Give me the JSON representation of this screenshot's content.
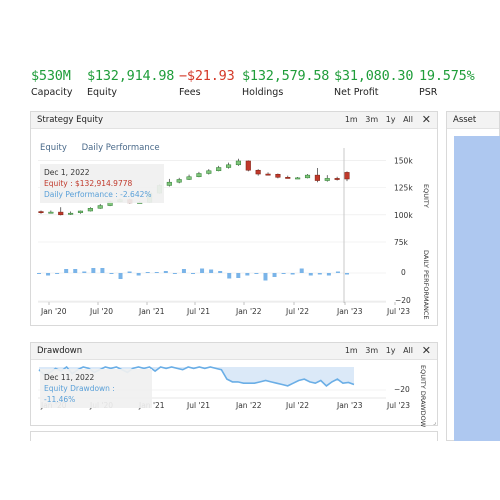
{
  "stats": [
    {
      "value": "$530M",
      "label": "Capacity",
      "color": "#1f9d3a"
    },
    {
      "value": "$132,914.98",
      "label": "Equity",
      "color": "#1f9d3a"
    },
    {
      "value": "−$21.93",
      "label": "Fees",
      "color": "#d43a2a"
    },
    {
      "value": "$132,579.58",
      "label": "Holdings",
      "color": "#1f9d3a"
    },
    {
      "value": "$31,080.30",
      "label": "Net Profit",
      "color": "#1f9d3a"
    },
    {
      "value": "19.575%",
      "label": "PSR",
      "color": "#1f9d3a"
    }
  ],
  "equity_panel": {
    "title": "Strategy Equity",
    "ranges": [
      "1m",
      "3m",
      "1y",
      "All"
    ],
    "close_icon": "close-icon",
    "tabs": [
      "Equity",
      "Daily Performance"
    ],
    "tooltip": {
      "date": "Dec 1, 2022",
      "equity": "Equity : $132,914.9778",
      "daily": "Daily Performance : -2.642%"
    },
    "y_ticks_equity": [
      "150k",
      "125k",
      "100k",
      "75k"
    ],
    "y_ticks_perf": [
      "0",
      "−20"
    ],
    "axis_label_equity": "EQUITY",
    "axis_label_perf": "DAILY PERFORMANCE",
    "x_ticks": [
      "Jan '20",
      "Jul '20",
      "Jan '21",
      "Jul '21",
      "Jan '22",
      "Jul '22",
      "Jan '23",
      "Jul '23"
    ]
  },
  "drawdown_panel": {
    "title": "Drawdown",
    "ranges": [
      "1m",
      "3m",
      "1y",
      "All"
    ],
    "close_icon": "close-icon",
    "tooltip": {
      "date": "Dec 11, 2022",
      "value": "Equity Drawdown : -11.46%"
    },
    "y_ticks": [
      "−20"
    ],
    "axis_label": "EQUITY DRAWDOWN",
    "x_ticks": [
      "Jan '20",
      "Jul '20",
      "Jan '21",
      "Jul '21",
      "Jan '22",
      "Jul '22",
      "Jan '23",
      "Jul '23"
    ]
  },
  "side_panel": {
    "title": "Asset"
  },
  "colors": {
    "up": "#1f9d3a",
    "down": "#c0392b",
    "perf": "#7ab4e8",
    "grid": "#e8e8e8"
  },
  "chart_data": [
    {
      "type": "candlestick",
      "title": "Strategy Equity",
      "x_ticks": [
        "Jan '20",
        "Jul '20",
        "Jan '21",
        "Jul '21",
        "Jan '22",
        "Jul '22",
        "Jan '23",
        "Jul '23"
      ],
      "ylabel": "EQUITY",
      "ylim": [
        75000,
        155000
      ],
      "y_ticks": [
        75000,
        100000,
        125000,
        150000
      ],
      "candles": [
        {
          "o": 103000,
          "c": 102000,
          "h": 104000,
          "l": 101000
        },
        {
          "o": 102000,
          "c": 102500,
          "h": 104000,
          "l": 101500
        },
        {
          "o": 102500,
          "c": 100000,
          "h": 107000,
          "l": 99500
        },
        {
          "o": 101000,
          "c": 101500,
          "h": 103000,
          "l": 100000
        },
        {
          "o": 102000,
          "c": 103500,
          "h": 104000,
          "l": 101000
        },
        {
          "o": 103500,
          "c": 106000,
          "h": 107000,
          "l": 103000
        },
        {
          "o": 106000,
          "c": 108500,
          "h": 110000,
          "l": 105500
        },
        {
          "o": 108500,
          "c": 112000,
          "h": 113000,
          "l": 108000
        },
        {
          "o": 112000,
          "c": 114000,
          "h": 115000,
          "l": 111500
        },
        {
          "o": 114000,
          "c": 111000,
          "h": 115000,
          "l": 110500
        },
        {
          "o": 111000,
          "c": 111500,
          "h": 112500,
          "l": 110500
        },
        {
          "o": 111500,
          "c": 120000,
          "h": 121000,
          "l": 111000
        },
        {
          "o": 120000,
          "c": 127000,
          "h": 128000,
          "l": 119500
        },
        {
          "o": 127000,
          "c": 130000,
          "h": 133000,
          "l": 126000
        },
        {
          "o": 130000,
          "c": 132500,
          "h": 134000,
          "l": 129000
        },
        {
          "o": 132500,
          "c": 135000,
          "h": 137000,
          "l": 132000
        },
        {
          "o": 135000,
          "c": 138000,
          "h": 139500,
          "l": 134500
        },
        {
          "o": 138000,
          "c": 140500,
          "h": 142000,
          "l": 137000
        },
        {
          "o": 140500,
          "c": 143500,
          "h": 145000,
          "l": 140000
        },
        {
          "o": 143500,
          "c": 146000,
          "h": 148000,
          "l": 142500
        },
        {
          "o": 146000,
          "c": 149500,
          "h": 151500,
          "l": 145000
        },
        {
          "o": 149500,
          "c": 141000,
          "h": 150000,
          "l": 140000
        },
        {
          "o": 141000,
          "c": 137500,
          "h": 142000,
          "l": 136000
        },
        {
          "o": 137500,
          "c": 137300,
          "h": 139000,
          "l": 136500
        },
        {
          "o": 137300,
          "c": 134500,
          "h": 138000,
          "l": 133500
        },
        {
          "o": 134500,
          "c": 134000,
          "h": 136000,
          "l": 133500
        },
        {
          "o": 134000,
          "c": 134000,
          "h": 134800,
          "l": 133200
        },
        {
          "o": 134000,
          "c": 136500,
          "h": 137500,
          "l": 133500
        },
        {
          "o": 136500,
          "c": 131500,
          "h": 143000,
          "l": 130000
        },
        {
          "o": 131500,
          "c": 133500,
          "h": 136500,
          "l": 130500
        },
        {
          "o": 133500,
          "c": 132500,
          "h": 135000,
          "l": 131500
        },
        {
          "o": 139000,
          "c": 132915,
          "h": 140000,
          "l": 131000
        }
      ]
    },
    {
      "type": "bar",
      "title": "Daily Performance",
      "ylabel": "DAILY PERFORMANCE",
      "ylim": [
        -25,
        20
      ],
      "y_ticks": [
        0,
        -20
      ],
      "values": [
        -1,
        -5,
        0,
        8,
        8,
        3,
        10,
        10,
        -1,
        -12,
        3,
        -5,
        2,
        2,
        4,
        0,
        8,
        0,
        9,
        7,
        4,
        -11,
        -10,
        -5,
        -1,
        -15,
        -8,
        0,
        -3,
        9,
        -5,
        -3,
        -5,
        3,
        -3
      ]
    },
    {
      "type": "area",
      "title": "Drawdown",
      "ylabel": "EQUITY DRAWDOWN",
      "ylim": [
        -25,
        5
      ],
      "y_ticks": [
        -20
      ],
      "values": [
        -2,
        -6,
        -4,
        -1,
        -3,
        0,
        -5,
        -2,
        0,
        -1,
        -4,
        -2,
        0,
        -1,
        0,
        -2,
        -4,
        -1,
        0,
        -1,
        0,
        -3,
        0,
        -1,
        0,
        -1,
        -2,
        0,
        -1,
        0,
        -1,
        0,
        -1,
        -2,
        -9,
        -11,
        -11,
        -12,
        -12,
        -12,
        -11,
        -10,
        -11,
        -12,
        -13,
        -14,
        -12,
        -10,
        -9,
        -11,
        -12,
        -10,
        -14,
        -11,
        -9,
        -12,
        -11.46,
        -13
      ]
    }
  ]
}
